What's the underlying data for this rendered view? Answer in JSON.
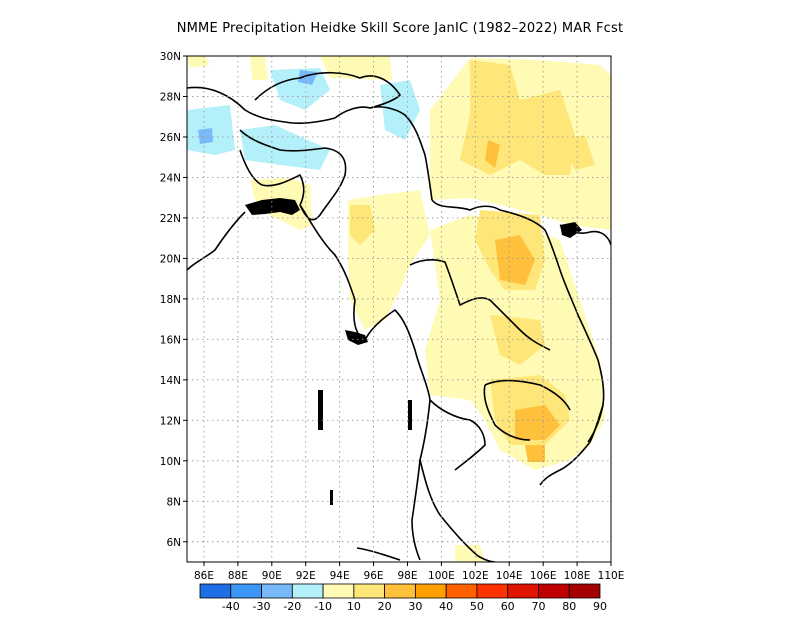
{
  "title": "NMME  Precipitation Heidke Skill Score JanIC (1982–2022) MAR Fcst",
  "map": {
    "lon_range": [
      85,
      110
    ],
    "lat_range": [
      5,
      30
    ],
    "lon_labels": [
      "86E",
      "88E",
      "90E",
      "92E",
      "94E",
      "96E",
      "98E",
      "100E",
      "102E",
      "104E",
      "106E",
      "108E",
      "110E"
    ],
    "lat_labels": [
      "6N",
      "8N",
      "10N",
      "12N",
      "14N",
      "16N",
      "18N",
      "20N",
      "22N",
      "24N",
      "26N",
      "28N",
      "30N"
    ],
    "gridlines": "dotted"
  },
  "colorbar": {
    "labels": [
      "-40",
      "-30",
      "-20",
      "-10",
      "10",
      "20",
      "30",
      "40",
      "50",
      "60",
      "70",
      "80",
      "90"
    ],
    "colors": [
      "#1e6ee6",
      "#3c96f5",
      "#78b9fa",
      "#b4f0fa",
      "#fffab4",
      "#ffe678",
      "#ffc03c",
      "#ffa000",
      "#ff6000",
      "#ff3200",
      "#e11400",
      "#c00000",
      "#a50000"
    ]
  }
}
